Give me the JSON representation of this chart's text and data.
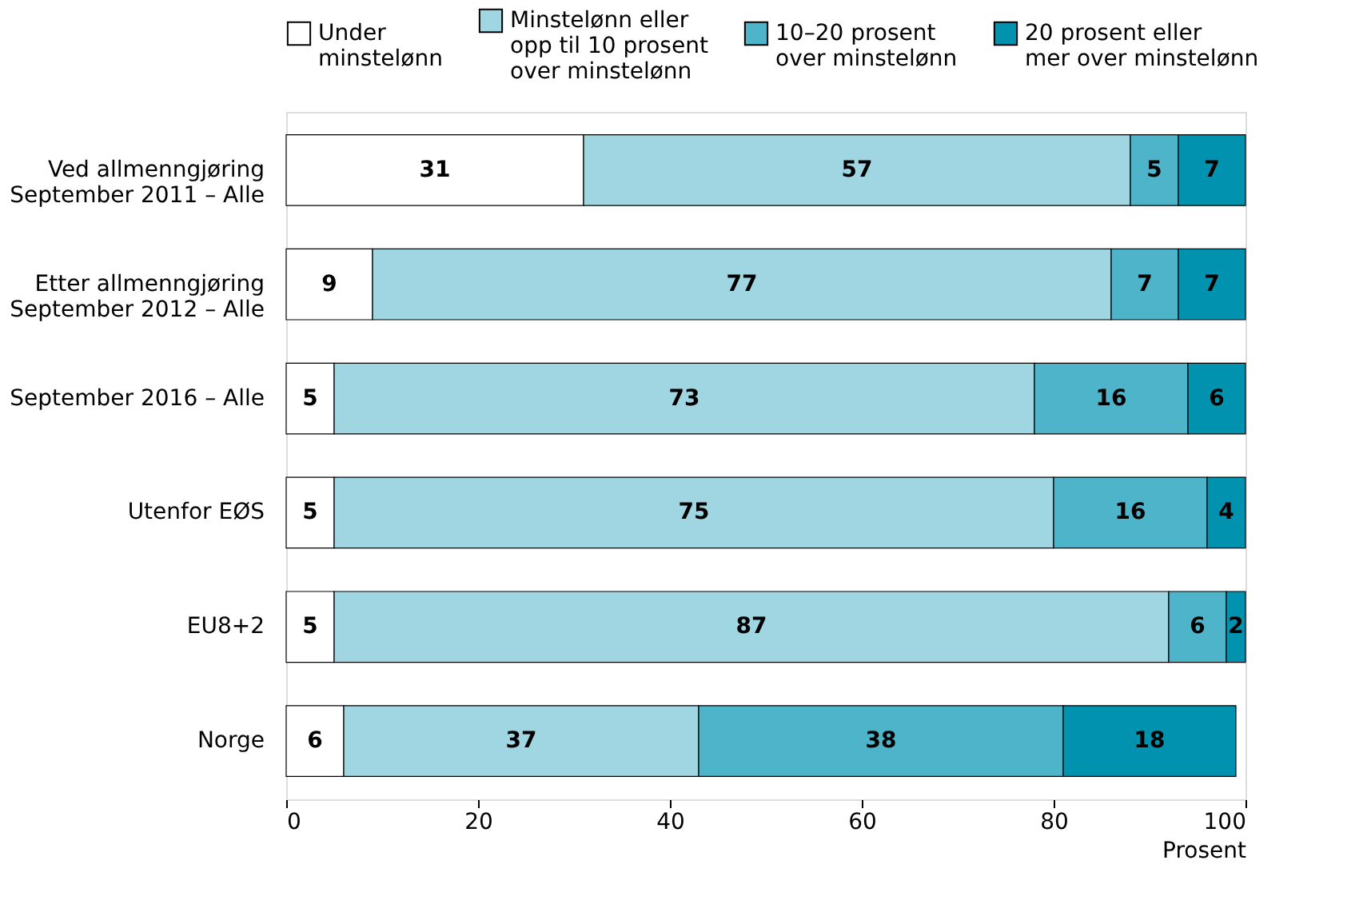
{
  "chart_data": {
    "type": "bar",
    "orientation": "horizontal",
    "stacked": true,
    "data_labels": true,
    "xlabel": "Prosent",
    "xlim": [
      0,
      100
    ],
    "xticks": [
      0,
      20,
      40,
      60,
      80,
      100
    ],
    "grid": false,
    "legend": "top",
    "categories": [
      "Ved allmenngjøring\nSeptember 2011 – Alle",
      "Etter allmenngjøring\nSeptember 2012 – Alle",
      "September 2016 – Alle",
      "Utenfor EØS",
      "EU8+2",
      "Norge"
    ],
    "series": [
      {
        "name": "Under\nminstelønn",
        "color": "#ffffff",
        "values": [
          31,
          9,
          5,
          5,
          5,
          6
        ]
      },
      {
        "name": "Minstelønn eller\nopp til 10 prosent\nover minstelønn",
        "color": "#9fd6e2",
        "values": [
          57,
          77,
          73,
          75,
          87,
          37
        ]
      },
      {
        "name": "10–20 prosent\nover minstelønn",
        "color": "#4db4ca",
        "values": [
          5,
          7,
          16,
          16,
          6,
          38
        ]
      },
      {
        "name": "20 prosent eller\nmer over minstelønn",
        "color": "#0092ae",
        "values": [
          7,
          7,
          6,
          4,
          2,
          18
        ]
      }
    ]
  }
}
